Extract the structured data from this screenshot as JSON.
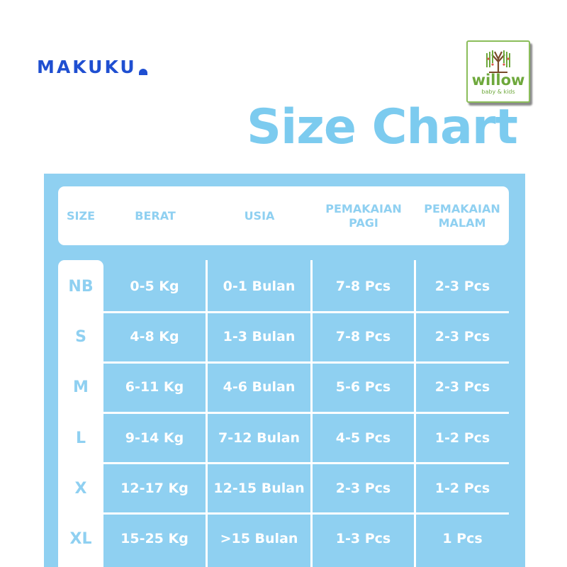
{
  "brand": {
    "name": "MAKUKU"
  },
  "badge": {
    "name": "willow",
    "subtitle": "baby & kids"
  },
  "title": "Size Chart",
  "colors": {
    "panel": "#8fd0f1",
    "title": "#7ccbef",
    "brand": "#1f4fd1",
    "badge": "#6ea83c"
  },
  "table": {
    "headers": [
      "SIZE",
      "BERAT",
      "USIA",
      "PEMAKAIAN\nPAGI",
      "PEMAKAIAN\nMALAM"
    ],
    "rows": [
      {
        "size": "NB",
        "berat": "0-5 Kg",
        "usia": "0-1 Bulan",
        "pagi": "7-8 Pcs",
        "malam": "2-3 Pcs"
      },
      {
        "size": "S",
        "berat": "4-8 Kg",
        "usia": "1-3 Bulan",
        "pagi": "7-8 Pcs",
        "malam": "2-3 Pcs"
      },
      {
        "size": "M",
        "berat": "6-11 Kg",
        "usia": "4-6 Bulan",
        "pagi": "5-6 Pcs",
        "malam": "2-3 Pcs"
      },
      {
        "size": "L",
        "berat": "9-14 Kg",
        "usia": "7-12 Bulan",
        "pagi": "4-5 Pcs",
        "malam": "1-2 Pcs"
      },
      {
        "size": "X",
        "berat": "12-17 Kg",
        "usia": "12-15 Bulan",
        "pagi": "2-3 Pcs",
        "malam": "1-2 Pcs"
      },
      {
        "size": "XL",
        "berat": "15-25 Kg",
        "usia": ">15 Bulan",
        "pagi": "1-3 Pcs",
        "malam": "1 Pcs"
      }
    ]
  }
}
